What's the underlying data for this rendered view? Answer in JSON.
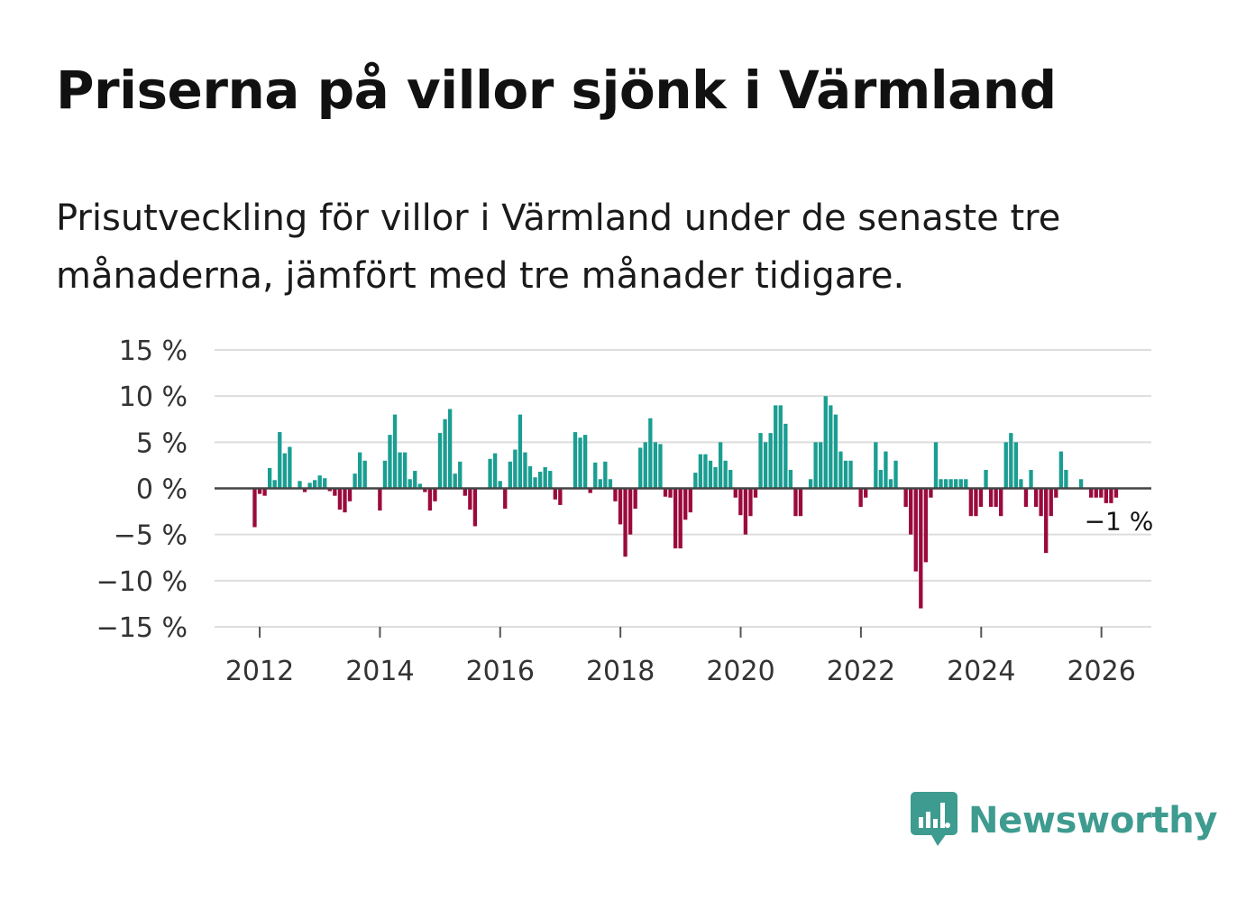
{
  "title": "Priserna på villor sjönk i Värmland",
  "subtitle": "Prisutveckling för villor i Värmland under de senaste tre månaderna, jämfört med tre månader tidigare.",
  "brand": "Newsworthy",
  "colors": {
    "positive": "#1a9e92",
    "negative": "#9b0a3d",
    "grid": "#dddddd",
    "zero": "#444444",
    "brand": "#3e9b8f"
  },
  "chart_data": {
    "type": "bar",
    "title": "Priserna på villor sjönk i Värmland",
    "xlabel": "",
    "ylabel": "",
    "ylim": [
      -15,
      15
    ],
    "yticks": [
      15,
      10,
      5,
      0,
      -5,
      -10,
      -15
    ],
    "ytick_labels": [
      "15 %",
      "10 %",
      "5 %",
      "0 %",
      "−5 %",
      "−10 %",
      "−15 %"
    ],
    "xlim": [
      2011.25,
      2026.83
    ],
    "xticks": [
      2012,
      2014,
      2016,
      2018,
      2020,
      2022,
      2024,
      2026
    ],
    "xtick_labels": [
      "2012",
      "2014",
      "2016",
      "2018",
      "2020",
      "2022",
      "2024",
      "2026"
    ],
    "annotation": {
      "x": 2026.17,
      "y": -1,
      "text": "−1 %"
    },
    "start": 2011.917,
    "step": 0.0833,
    "values": [
      -4.2,
      -0.6,
      -0.8,
      2.2,
      0.9,
      6.1,
      3.8,
      4.5,
      0,
      0.8,
      -0.4,
      0.6,
      0.9,
      1.4,
      1.1,
      -0.3,
      -0.8,
      -2.3,
      -2.6,
      -1.4,
      1.6,
      3.9,
      3.0,
      0,
      0,
      -2.4,
      3.0,
      5.8,
      8.0,
      3.9,
      3.9,
      1.0,
      1.9,
      0.5,
      -0.4,
      -2.4,
      -1.4,
      6.0,
      7.5,
      8.6,
      1.6,
      2.9,
      -0.8,
      -2.3,
      -4.1,
      0,
      0,
      3.2,
      3.8,
      0.8,
      -2.2,
      2.9,
      4.2,
      8.0,
      3.9,
      2.4,
      1.2,
      1.8,
      2.3,
      1.9,
      -1.2,
      -1.8,
      0,
      0,
      6.1,
      5.5,
      5.8,
      -0.5,
      2.8,
      1.0,
      2.9,
      1.0,
      -1.4,
      -3.9,
      -7.4,
      -5.0,
      -2.2,
      4.4,
      5.0,
      7.6,
      5.0,
      4.8,
      -0.9,
      -1.0,
      -6.5,
      -6.5,
      -3.4,
      -2.6,
      1.7,
      3.7,
      3.7,
      3.0,
      2.3,
      5.0,
      3.0,
      2.0,
      -1.0,
      -2.9,
      -5.0,
      -3.0,
      -1.0,
      6.0,
      5.0,
      6.0,
      9.0,
      9.0,
      7.0,
      2.0,
      -3.0,
      -3.0,
      0,
      1.0,
      5.0,
      5.0,
      10.0,
      9.0,
      8.0,
      4.0,
      3.0,
      3.0,
      0,
      -2.0,
      -1.0,
      0,
      5.0,
      2.0,
      4.0,
      1.0,
      3.0,
      0,
      -2.0,
      -5.0,
      -9.0,
      -13.0,
      -8.0,
      -1.0,
      5.0,
      1.0,
      1.0,
      1.0,
      1.0,
      1.0,
      1.0,
      -3.0,
      -3.0,
      -2.0,
      2.0,
      -2.0,
      -2.0,
      -3.0,
      5.0,
      6.0,
      5.0,
      1.0,
      -2.0,
      2.0,
      -2.0,
      -3.0,
      -7.0,
      -3.0,
      -1.0,
      4.0,
      2.0,
      0,
      0,
      1.0,
      0,
      -1.0,
      -1.0,
      -1.0,
      -1.6,
      -1.6,
      -1.0
    ]
  }
}
